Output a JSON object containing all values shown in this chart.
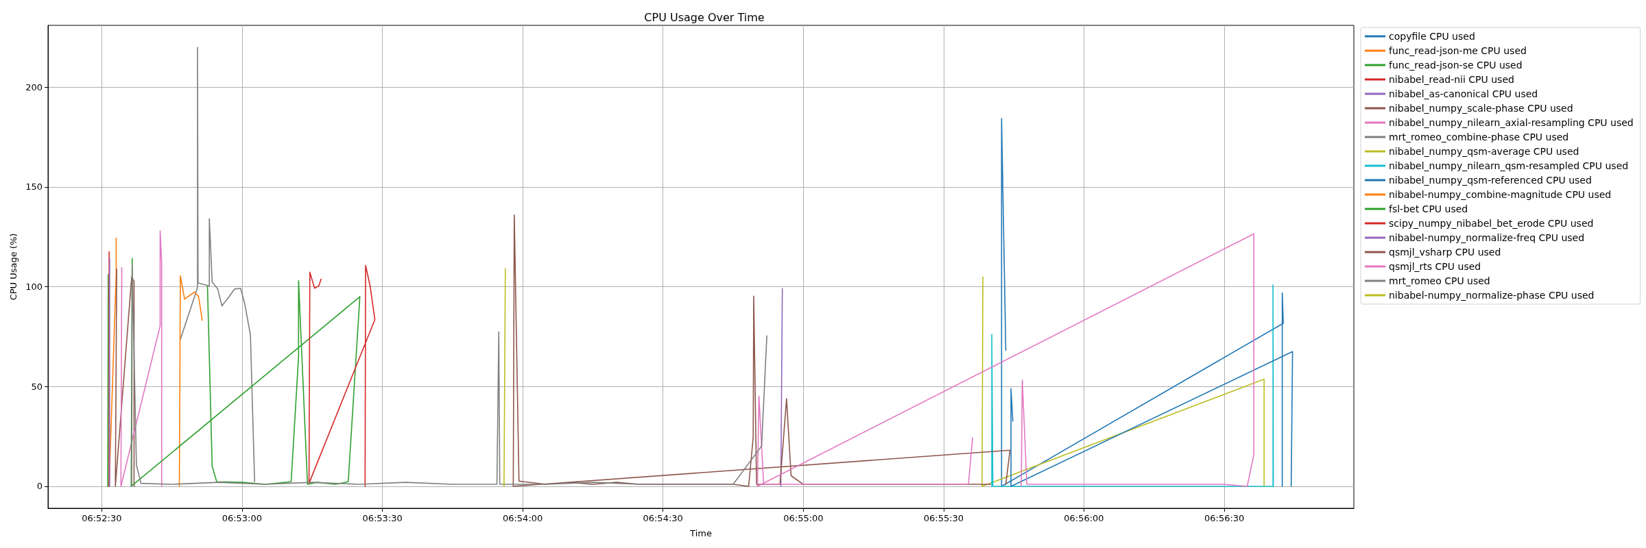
{
  "chart_data": {
    "type": "line",
    "title": "CPU Usage Over Time",
    "xlabel": "Time",
    "ylabel": "CPU Usage (%)",
    "xlim": [
      6.87181,
      6.94936
    ],
    "ylim": [
      -11,
      231
    ],
    "xticks": [
      {
        "value": 6.875,
        "label": "06:52:30"
      },
      {
        "value": 6.88333,
        "label": "06:53:00"
      },
      {
        "value": 6.89167,
        "label": "06:53:30"
      },
      {
        "value": 6.9,
        "label": "06:54:00"
      },
      {
        "value": 6.90833,
        "label": "06:54:30"
      },
      {
        "value": 6.91667,
        "label": "06:55:00"
      },
      {
        "value": 6.925,
        "label": "06:55:30"
      },
      {
        "value": 6.93333,
        "label": "06:56:00"
      },
      {
        "value": 6.94167,
        "label": "06:56:30"
      }
    ],
    "yticks": [
      0,
      50,
      100,
      150,
      200
    ],
    "grid": true,
    "legend": "top right",
    "line_style": "solid",
    "marker": "none",
    "series": [
      {
        "name": "copyfile CPU used",
        "color": "#1f77b4",
        "x": [
          6.94511,
          6.94511,
          6.94517,
          6.92844,
          6.92844,
          6.92869
        ],
        "values": [
          0,
          96.9,
          81.7,
          0,
          184.3,
          68.1
        ]
      },
      {
        "name": "func_read-json-me CPU used",
        "color": "#ff7f0e",
        "x": [
          6.87544,
          6.87586,
          6.87586
        ],
        "values": [
          0,
          107.3,
          124.4
        ]
      },
      {
        "name": "func_read-json-se CPU used",
        "color": "#2ca02c",
        "x": [
          6.87536,
          6.87539
        ],
        "values": [
          0,
          106.1
        ]
      },
      {
        "name": "nibabel_read-nii CPU used",
        "color": "#d62728",
        "x": [
          6.87544,
          6.87544
        ],
        "values": [
          0,
          117.5
        ]
      },
      {
        "name": "nibabel_as-canonical CPU used",
        "color": "#9467bd",
        "x": [
          6.87547,
          6.87547
        ],
        "values": [
          0,
          114.2
        ]
      },
      {
        "name": "nibabel_numpy_scale-phase CPU used",
        "color": "#8c564b",
        "x": [
          6.87589,
          6.87581,
          6.87678,
          6.87692,
          6.87692
        ],
        "values": [
          108.8,
          0,
          105.0,
          102.7,
          0
        ]
      },
      {
        "name": "nibabel_numpy_nilearn_axial-resampling CPU used",
        "color": "#e377c2",
        "x": [
          6.87619,
          6.87614,
          6.87847,
          6.87847,
          6.87856,
          6.87856
        ],
        "values": [
          109.6,
          0,
          80.5,
          128.0,
          111.9,
          0
        ]
      },
      {
        "name": "mrt_romeo_combine-phase CPU used",
        "color": "#7f7f7f",
        "x": [
          6.87967,
          6.88069,
          6.88069,
          6.88072,
          6.88139,
          6.88139,
          6.88156,
          6.88189,
          6.88214,
          6.88256,
          6.88289,
          6.88325,
          6.8835,
          6.88383,
          6.88408
        ],
        "values": [
          73.6,
          99.6,
          219.9,
          101.9,
          100.4,
          134.1,
          102.4,
          98.9,
          90.4,
          95,
          98.9,
          99.2,
          91.2,
          75.9,
          2.3
        ]
      },
      {
        "name": "nibabel_numpy_qsm-average CPU used",
        "color": "#bcbd22",
        "x": [
          6.94403,
          6.94403,
          6.92728,
          6.92733
        ],
        "values": [
          0,
          53.7,
          0,
          104.9
        ]
      },
      {
        "name": "nibabel_numpy_nilearn_qsm-resampled CPU used",
        "color": "#17becf",
        "x": [
          6.92786,
          6.92786,
          6.92792,
          6.94456,
          6.94456,
          6.94458
        ],
        "values": [
          0,
          76.1,
          0,
          0,
          100.9,
          0
        ]
      },
      {
        "name": "nibabel_numpy_qsm-referenced CPU used",
        "color": "#1f77b4",
        "x": [
          6.94564,
          6.94572,
          6.929,
          6.929,
          6.92911
        ],
        "values": [
          0,
          67.5,
          0,
          49.0,
          32.6
        ]
      },
      {
        "name": "nibabel-numpy_combine-magnitude CPU used",
        "color": "#ff7f0e",
        "x": [
          6.87961,
          6.87967,
          6.87992,
          6.8805,
          6.88075,
          6.88097
        ],
        "values": [
          0,
          105.4,
          93.8,
          97.3,
          95.3,
          83.2
        ]
      },
      {
        "name": "fsl-bet CPU used",
        "color": "#2ca02c",
        "x": [
          6.87681,
          6.87675,
          6.89033,
          6.88964,
          6.88889,
          6.88778,
          6.88722,
          6.88669,
          6.88669,
          6.88625,
          6.88472,
          6.88333,
          6.88183,
          6.88156,
          6.88128
        ],
        "values": [
          114.2,
          0,
          95.0,
          2.3,
          1,
          2,
          1,
          103,
          65,
          2.3,
          1,
          2,
          2.3,
          10,
          100.4
        ]
      },
      {
        "name": "scipy_numpy_nibabel_bet_erode CPU used",
        "color": "#d62728",
        "x": [
          6.89064,
          6.89067,
          6.89094,
          6.89122,
          6.88731,
          6.88736,
          6.88764,
          6.88789,
          6.88803
        ],
        "values": [
          0,
          110.7,
          100.4,
          83.5,
          1.5,
          107.3,
          99.3,
          100.4,
          103.8
        ]
      },
      {
        "name": "nibabel-numpy_normalize-freq CPU used",
        "color": "#9467bd",
        "x": [
          6.91533,
          6.91542
        ],
        "values": [
          0,
          99.1
        ]
      },
      {
        "name": "qsmjl_vsharp CPU used",
        "color": "#8c564b",
        "x": [
          6.92869,
          6.92894,
          6.89944,
          6.8995,
          6.89978,
          6.90139,
          6.90278,
          6.90417,
          6.90556,
          6.90694,
          6.90833,
          6.90972,
          6.91111,
          6.9125,
          6.91342,
          6.91369,
          6.91372,
          6.91389,
          6.91528,
          6.91567,
          6.91594,
          6.91667,
          6.91944,
          6.92222,
          6.925,
          6.92778
        ],
        "values": [
          1,
          18.1,
          0,
          136,
          2.6,
          1,
          2,
          1,
          2,
          1,
          1,
          1,
          1,
          1,
          0,
          24.6,
          95.3,
          1,
          1,
          43.9,
          5.3,
          1,
          1,
          1,
          1,
          1
        ]
      },
      {
        "name": "qsmjl_rts CPU used",
        "color": "#e377c2",
        "x": [
          6.92672,
          6.92647,
          6.925,
          6.92222,
          6.91944,
          6.91667,
          6.91431,
          6.91403,
          6.91394,
          6.94342,
          6.94342,
          6.94303,
          6.94167,
          6.93889,
          6.93611,
          6.93333,
          6.93056,
          6.92994,
          6.92967,
          6.92961
        ],
        "values": [
          24.3,
          1,
          1,
          1,
          1,
          1,
          1,
          45.1,
          0,
          126.5,
          15.9,
          0,
          1,
          1,
          1,
          1,
          1,
          1,
          53.3,
          0
        ]
      },
      {
        "name": "mrt_romeo CPU used",
        "color": "#7f7f7f",
        "x": [
          6.87678,
          6.87681,
          6.87706,
          6.87733,
          6.87917,
          6.88194,
          6.88472,
          6.8875,
          6.89028,
          6.89306,
          6.89583,
          6.89847,
          6.89858,
          6.89864,
          6.90139,
          6.90417,
          6.90694,
          6.90972,
          6.9125,
          6.91419,
          6.9145
        ],
        "values": [
          0,
          111,
          10.7,
          1.5,
          1,
          2,
          1,
          2,
          1,
          2,
          1,
          1,
          77.4,
          1,
          1,
          2,
          1,
          1,
          1,
          20.2,
          75.4
        ]
      },
      {
        "name": "nibabel-numpy_normalize-phase CPU used",
        "color": "#bcbd22",
        "x": [
          6.89889,
          6.89897
        ],
        "values": [
          0,
          109.1
        ]
      }
    ]
  }
}
